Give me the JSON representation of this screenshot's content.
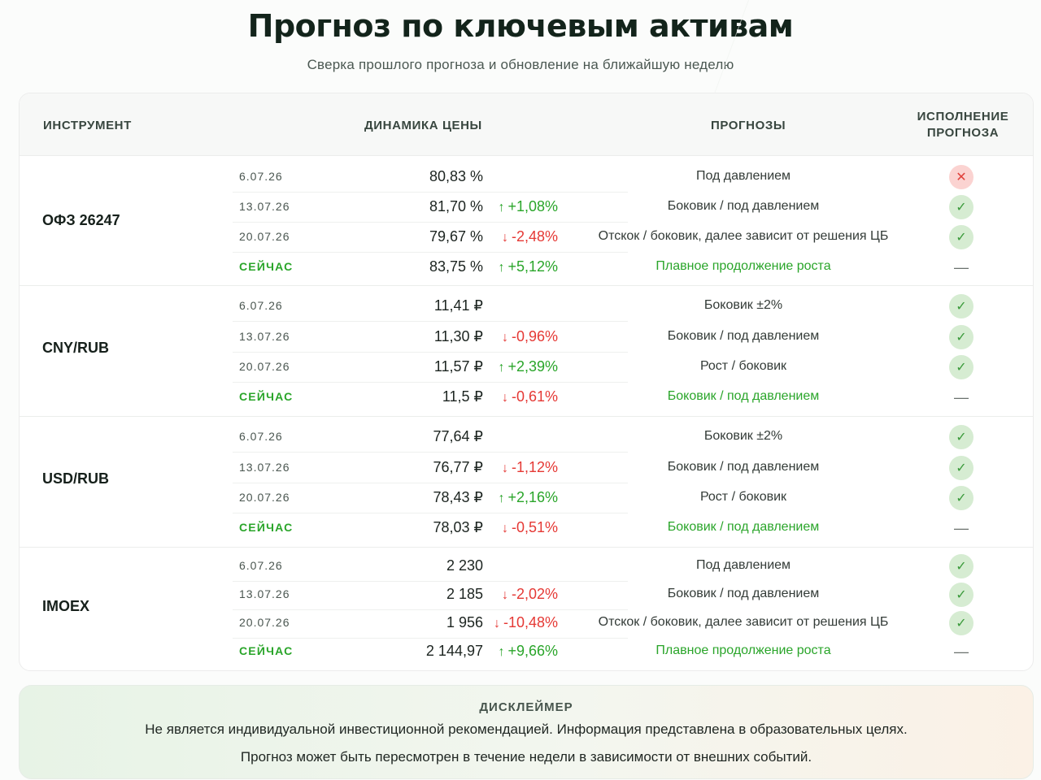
{
  "header": {
    "title": "Прогноз по ключевым активам",
    "subtitle": "Сверка прошлого прогноза и обновление на ближайшую неделю"
  },
  "table": {
    "col_instrument": "ИНСТРУМЕНТ",
    "col_dynamics": "ДИНАМИКА ЦЕНЫ",
    "col_forecasts": "ПРОГНОЗЫ",
    "col_execution_1": "ИСПОЛНЕНИЕ",
    "col_execution_2": "ПРОГНОЗА",
    "groups": [
      {
        "name": "ОФЗ 26247",
        "rows": [
          {
            "date": "6.07.26",
            "value": "80,83 %",
            "arrow": "",
            "change": "",
            "dir": "",
            "forecast": "Под давлением",
            "exec": "fail"
          },
          {
            "date": "13.07.26",
            "value": "81,70 %",
            "arrow": "↑",
            "change": "+1,08%",
            "dir": "up",
            "forecast": "Боковик / под давлением",
            "exec": "ok"
          },
          {
            "date": "20.07.26",
            "value": "79,67 %",
            "arrow": "↓",
            "change": "-2,48%",
            "dir": "down",
            "forecast": "Отскок / боковик, далее зависит от решения ЦБ",
            "exec": "ok"
          },
          {
            "date": "СЕЙЧАС",
            "value": "83,75 %",
            "arrow": "↑",
            "change": "+5,12%",
            "dir": "up",
            "forecast": "Плавное продолжение роста",
            "exec": "dash",
            "now": true
          }
        ]
      },
      {
        "name": "CNY/RUB",
        "rows": [
          {
            "date": "6.07.26",
            "value": "11,41 ₽",
            "arrow": "",
            "change": "",
            "dir": "",
            "forecast": "Боковик ±2%",
            "exec": "ok"
          },
          {
            "date": "13.07.26",
            "value": "11,30 ₽",
            "arrow": "↓",
            "change": "-0,96%",
            "dir": "down",
            "forecast": "Боковик / под давлением",
            "exec": "ok"
          },
          {
            "date": "20.07.26",
            "value": "11,57 ₽",
            "arrow": "↑",
            "change": "+2,39%",
            "dir": "up",
            "forecast": "Рост / боковик",
            "exec": "ok"
          },
          {
            "date": "СЕЙЧАС",
            "value": "11,5 ₽",
            "arrow": "↓",
            "change": "-0,61%",
            "dir": "down",
            "forecast": "Боковик / под давлением",
            "exec": "dash",
            "now": true
          }
        ]
      },
      {
        "name": "USD/RUB",
        "rows": [
          {
            "date": "6.07.26",
            "value": "77,64 ₽",
            "arrow": "",
            "change": "",
            "dir": "",
            "forecast": "Боковик ±2%",
            "exec": "ok"
          },
          {
            "date": "13.07.26",
            "value": "76,77 ₽",
            "arrow": "↓",
            "change": "-1,12%",
            "dir": "down",
            "forecast": "Боковик / под давлением",
            "exec": "ok"
          },
          {
            "date": "20.07.26",
            "value": "78,43 ₽",
            "arrow": "↑",
            "change": "+2,16%",
            "dir": "up",
            "forecast": "Рост / боковик",
            "exec": "ok"
          },
          {
            "date": "СЕЙЧАС",
            "value": "78,03 ₽",
            "arrow": "↓",
            "change": "-0,51%",
            "dir": "down",
            "forecast": "Боковик / под давлением",
            "exec": "dash",
            "now": true
          }
        ]
      },
      {
        "name": "IMOEX",
        "rows": [
          {
            "date": "6.07.26",
            "value": "2 230",
            "arrow": "",
            "change": "",
            "dir": "",
            "forecast": "Под давлением",
            "exec": "ok"
          },
          {
            "date": "13.07.26",
            "value": "2 185",
            "arrow": "↓",
            "change": "-2,02%",
            "dir": "down",
            "forecast": "Боковик / под давлением",
            "exec": "ok"
          },
          {
            "date": "20.07.26",
            "value": "1 956",
            "arrow": "↓",
            "change": "-10,48%",
            "dir": "down",
            "forecast": "Отскок / боковик, далее зависит от решения ЦБ",
            "exec": "ok"
          },
          {
            "date": "СЕЙЧАС",
            "value": "2 144,97",
            "arrow": "↑",
            "change": "+9,66%",
            "dir": "up",
            "forecast": "Плавное продолжение роста",
            "exec": "dash",
            "now": true
          }
        ]
      }
    ]
  },
  "icons": {
    "ok": "✓",
    "fail": "✕",
    "dash": "—"
  },
  "colors": {
    "up": "#2aa52a",
    "down": "#e53935",
    "ok_bg": "#d6ecd2",
    "fail_bg": "#fbd3d1"
  },
  "disclaimer": {
    "title": "ДИСКЛЕЙМЕР",
    "line1": "Не является индивидуальной инвестиционной рекомендацией. Информация представлена в образовательных целях.",
    "line2": "Прогноз может быть пересмотрен в течение недели в зависимости от внешних событий."
  }
}
